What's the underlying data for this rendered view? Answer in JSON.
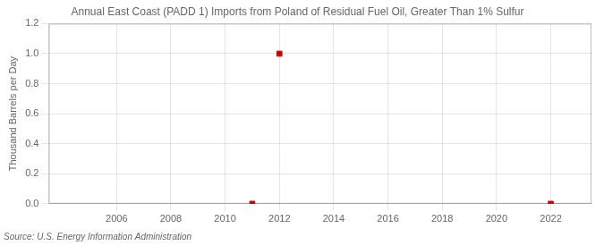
{
  "chart_data": {
    "type": "scatter",
    "title": "Annual East Coast (PADD 1) Imports from Poland of Residual Fuel Oil, Greater Than 1% Sulfur",
    "ylabel": "Thousand Barrels per Day",
    "source": "Source: U.S. Energy Information Administration",
    "x": [
      2011,
      2012,
      2022
    ],
    "values": [
      0.0,
      1.0,
      0.0
    ],
    "color": "#cc0000",
    "marker": "square",
    "xlim": [
      2003.5,
      2023.5
    ],
    "ylim": [
      0.0,
      1.2
    ],
    "xticks": [
      2006,
      2008,
      2010,
      2012,
      2014,
      2016,
      2018,
      2020,
      2022
    ],
    "yticks": [
      {
        "value": 0.0,
        "label": "0.0"
      },
      0.2,
      0.4,
      0.6,
      0.8,
      {
        "value": 1.0,
        "label": "1.0"
      },
      1.2
    ],
    "grid": true
  }
}
